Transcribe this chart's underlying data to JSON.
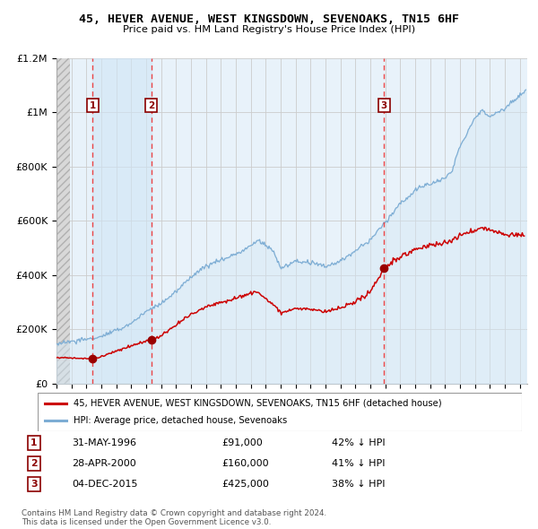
{
  "title": "45, HEVER AVENUE, WEST KINGSDOWN, SEVENOAKS, TN15 6HF",
  "subtitle": "Price paid vs. HM Land Registry's House Price Index (HPI)",
  "xlim_start": 1994.0,
  "xlim_end": 2025.5,
  "ylim": [
    0,
    1200000
  ],
  "yticks": [
    0,
    200000,
    400000,
    600000,
    800000,
    1000000,
    1200000
  ],
  "ytick_labels": [
    "£0",
    "£200K",
    "£400K",
    "£600K",
    "£800K",
    "£1M",
    "£1.2M"
  ],
  "sale_dates": [
    1996.42,
    2000.33,
    2015.92
  ],
  "sale_prices": [
    91000,
    160000,
    425000
  ],
  "sale_labels": [
    "1",
    "2",
    "3"
  ],
  "legend_property": "45, HEVER AVENUE, WEST KINGSDOWN, SEVENOAKS, TN15 6HF (detached house)",
  "legend_hpi": "HPI: Average price, detached house, Sevenoaks",
  "table_rows": [
    {
      "label": "1",
      "date": "31-MAY-1996",
      "price": "£91,000",
      "note": "42% ↓ HPI"
    },
    {
      "label": "2",
      "date": "28-APR-2000",
      "price": "£160,000",
      "note": "41% ↓ HPI"
    },
    {
      "label": "3",
      "date": "04-DEC-2015",
      "price": "£425,000",
      "note": "38% ↓ HPI"
    }
  ],
  "footer": "Contains HM Land Registry data © Crown copyright and database right 2024.\nThis data is licensed under the Open Government Licence v3.0.",
  "property_line_color": "#cc0000",
  "hpi_line_color": "#7dadd4",
  "hpi_fill_color": "#d5e8f5",
  "dashed_line_color": "#ee3333",
  "marker_color": "#990000",
  "grid_color": "#cccccc",
  "background_plot": "#e8f2fa",
  "hatch_fill": "#d8d8d8"
}
